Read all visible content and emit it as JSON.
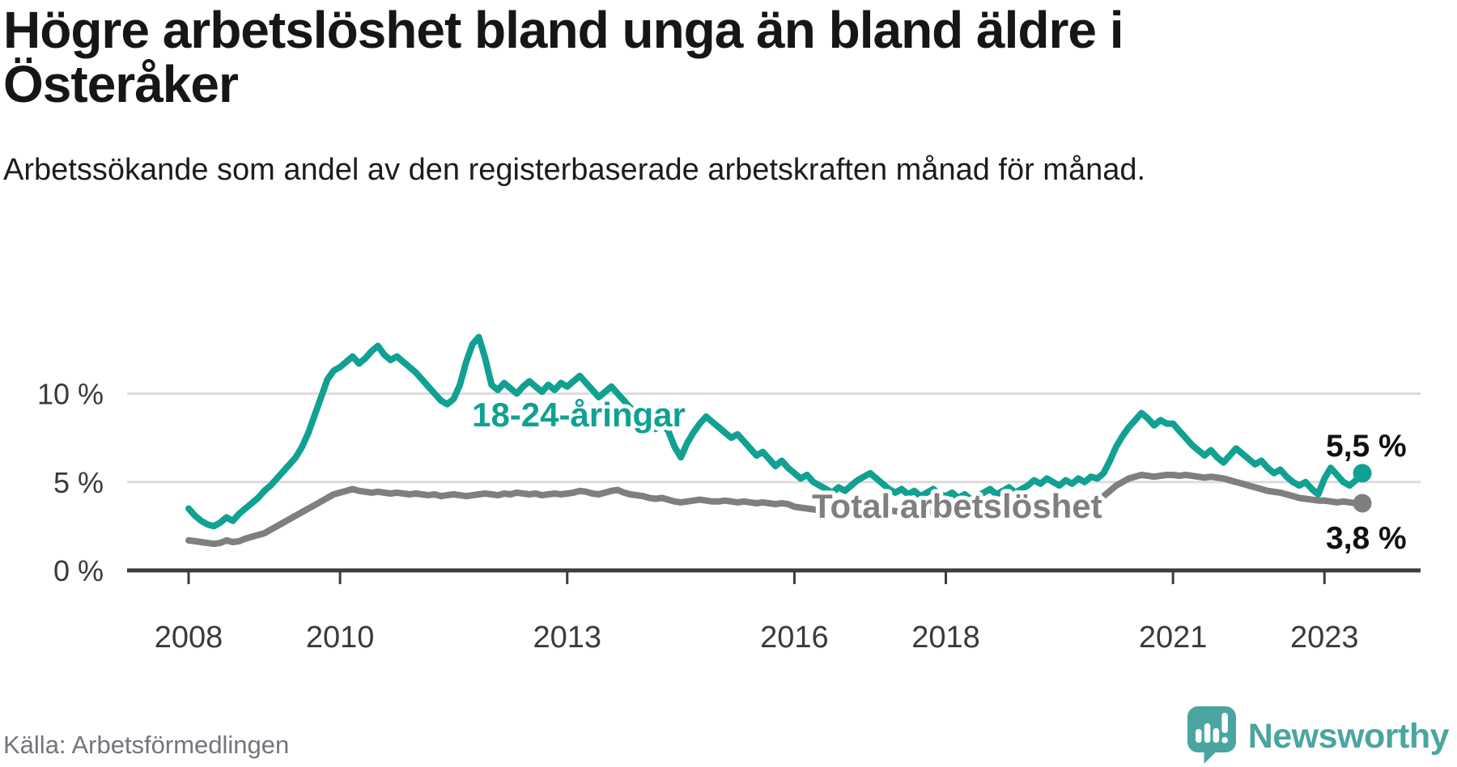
{
  "header": {
    "title": "Högre arbetslöshet bland unga än bland äldre i Österåker",
    "subtitle": "Arbetssökande som andel av den registerbaserade arbetskraften månad för månad."
  },
  "footer": {
    "source": "Källa: Arbetsförmedlingen",
    "brand": "Newsworthy",
    "brand_icon": "newsworthy-speech-bubble-bar-chart-icon"
  },
  "colors": {
    "young_series": "#10a193",
    "total_series": "#7f7f7f",
    "logo_teal": "#4aa5a0",
    "grid": "#dcdcdc",
    "axis": "#3d3d3d",
    "tick_text": "#3a3a3a",
    "end_label_text": "#111111"
  },
  "chart_data": {
    "type": "line",
    "x_unit": "month",
    "x_start": "2008-01",
    "x_end": "2023-07",
    "xticks": [
      2008,
      2010,
      2013,
      2016,
      2018,
      2021,
      2023
    ],
    "yticks": [
      {
        "label": "0 %",
        "value": 0
      },
      {
        "label": "5 %",
        "value": 5
      },
      {
        "label": "10 %",
        "value": 10
      }
    ],
    "ylim": [
      0,
      13.5
    ],
    "grid": "horizontal",
    "legend_position": "inline-labels",
    "series": [
      {
        "name": "18-24-åringar",
        "color": "#10a193",
        "end_label": "5,5 %",
        "end_value": 5.5,
        "values": [
          3.5,
          3.1,
          2.8,
          2.6,
          2.5,
          2.7,
          3.0,
          2.8,
          3.2,
          3.5,
          3.8,
          4.1,
          4.5,
          4.8,
          5.2,
          5.6,
          6.0,
          6.4,
          7.0,
          7.8,
          8.8,
          9.8,
          10.8,
          11.3,
          11.5,
          11.8,
          12.1,
          11.7,
          12.0,
          12.4,
          12.7,
          12.2,
          11.9,
          12.1,
          11.8,
          11.5,
          11.2,
          10.8,
          10.4,
          10.0,
          9.6,
          9.4,
          9.7,
          10.5,
          11.8,
          12.8,
          13.2,
          12.0,
          10.5,
          10.2,
          10.6,
          10.3,
          10.0,
          10.4,
          10.7,
          10.4,
          10.1,
          10.5,
          10.2,
          10.6,
          10.4,
          10.7,
          11.0,
          10.6,
          10.2,
          9.8,
          10.1,
          10.4,
          10.0,
          9.6,
          9.2,
          8.9,
          8.6,
          8.3,
          8.0,
          8.3,
          7.9,
          7.0,
          6.4,
          7.2,
          7.8,
          8.3,
          8.7,
          8.4,
          8.1,
          7.8,
          7.5,
          7.7,
          7.3,
          6.9,
          6.5,
          6.7,
          6.3,
          5.9,
          6.2,
          5.8,
          5.5,
          5.2,
          5.4,
          5.0,
          4.8,
          4.6,
          4.4,
          4.7,
          4.5,
          4.8,
          5.1,
          5.3,
          5.5,
          5.2,
          4.9,
          4.6,
          4.4,
          4.6,
          4.3,
          4.5,
          4.2,
          4.4,
          4.6,
          4.3,
          4.2,
          4.4,
          4.1,
          4.3,
          4.0,
          4.2,
          4.4,
          4.6,
          4.3,
          4.5,
          4.7,
          4.4,
          4.6,
          4.8,
          5.1,
          4.9,
          5.2,
          5.0,
          4.8,
          5.1,
          4.9,
          5.2,
          5.0,
          5.3,
          5.2,
          5.5,
          6.2,
          7.0,
          7.6,
          8.1,
          8.5,
          8.9,
          8.6,
          8.2,
          8.5,
          8.3,
          8.3,
          7.9,
          7.5,
          7.1,
          6.8,
          6.5,
          6.8,
          6.4,
          6.1,
          6.5,
          6.9,
          6.6,
          6.3,
          6.0,
          6.2,
          5.8,
          5.5,
          5.7,
          5.3,
          5.0,
          4.8,
          5.0,
          4.6,
          4.3,
          5.2,
          5.8,
          5.4,
          5.0,
          4.8,
          5.1,
          5.5
        ]
      },
      {
        "name": "Total arbetslöshet",
        "color": "#7f7f7f",
        "end_label": "3,8 %",
        "end_value": 3.8,
        "values": [
          1.7,
          1.65,
          1.6,
          1.55,
          1.5,
          1.55,
          1.7,
          1.6,
          1.65,
          1.8,
          1.9,
          2.0,
          2.1,
          2.3,
          2.5,
          2.7,
          2.9,
          3.1,
          3.3,
          3.5,
          3.7,
          3.9,
          4.1,
          4.3,
          4.4,
          4.5,
          4.6,
          4.5,
          4.45,
          4.4,
          4.45,
          4.4,
          4.35,
          4.4,
          4.35,
          4.3,
          4.35,
          4.3,
          4.25,
          4.3,
          4.2,
          4.25,
          4.3,
          4.25,
          4.2,
          4.25,
          4.3,
          4.35,
          4.3,
          4.25,
          4.35,
          4.3,
          4.4,
          4.35,
          4.3,
          4.35,
          4.25,
          4.3,
          4.35,
          4.3,
          4.35,
          4.4,
          4.5,
          4.45,
          4.35,
          4.3,
          4.4,
          4.5,
          4.55,
          4.4,
          4.3,
          4.25,
          4.2,
          4.1,
          4.05,
          4.1,
          4.0,
          3.9,
          3.85,
          3.9,
          3.95,
          4.0,
          3.95,
          3.9,
          3.9,
          3.95,
          3.9,
          3.85,
          3.9,
          3.85,
          3.8,
          3.85,
          3.8,
          3.75,
          3.8,
          3.75,
          3.6,
          3.55,
          3.5,
          3.45,
          3.4,
          3.45,
          3.35,
          3.3,
          3.35,
          3.4,
          3.45,
          3.4,
          3.45,
          3.4,
          3.35,
          3.4,
          3.35,
          3.3,
          3.35,
          3.3,
          3.25,
          3.3,
          3.35,
          3.3,
          3.35,
          3.4,
          3.35,
          3.3,
          3.35,
          3.4,
          3.45,
          3.4,
          3.35,
          3.4,
          3.45,
          3.5,
          3.55,
          3.6,
          3.65,
          3.6,
          3.65,
          3.7,
          3.75,
          3.8,
          3.85,
          3.9,
          3.95,
          4.0,
          4.1,
          4.2,
          4.5,
          4.8,
          5.0,
          5.2,
          5.3,
          5.4,
          5.35,
          5.3,
          5.35,
          5.4,
          5.4,
          5.35,
          5.4,
          5.35,
          5.3,
          5.25,
          5.3,
          5.25,
          5.2,
          5.1,
          5.0,
          4.9,
          4.8,
          4.7,
          4.6,
          4.5,
          4.45,
          4.4,
          4.3,
          4.2,
          4.1,
          4.05,
          4.0,
          3.95,
          3.95,
          3.9,
          3.85,
          3.9,
          3.85,
          3.8,
          3.8
        ]
      }
    ]
  }
}
